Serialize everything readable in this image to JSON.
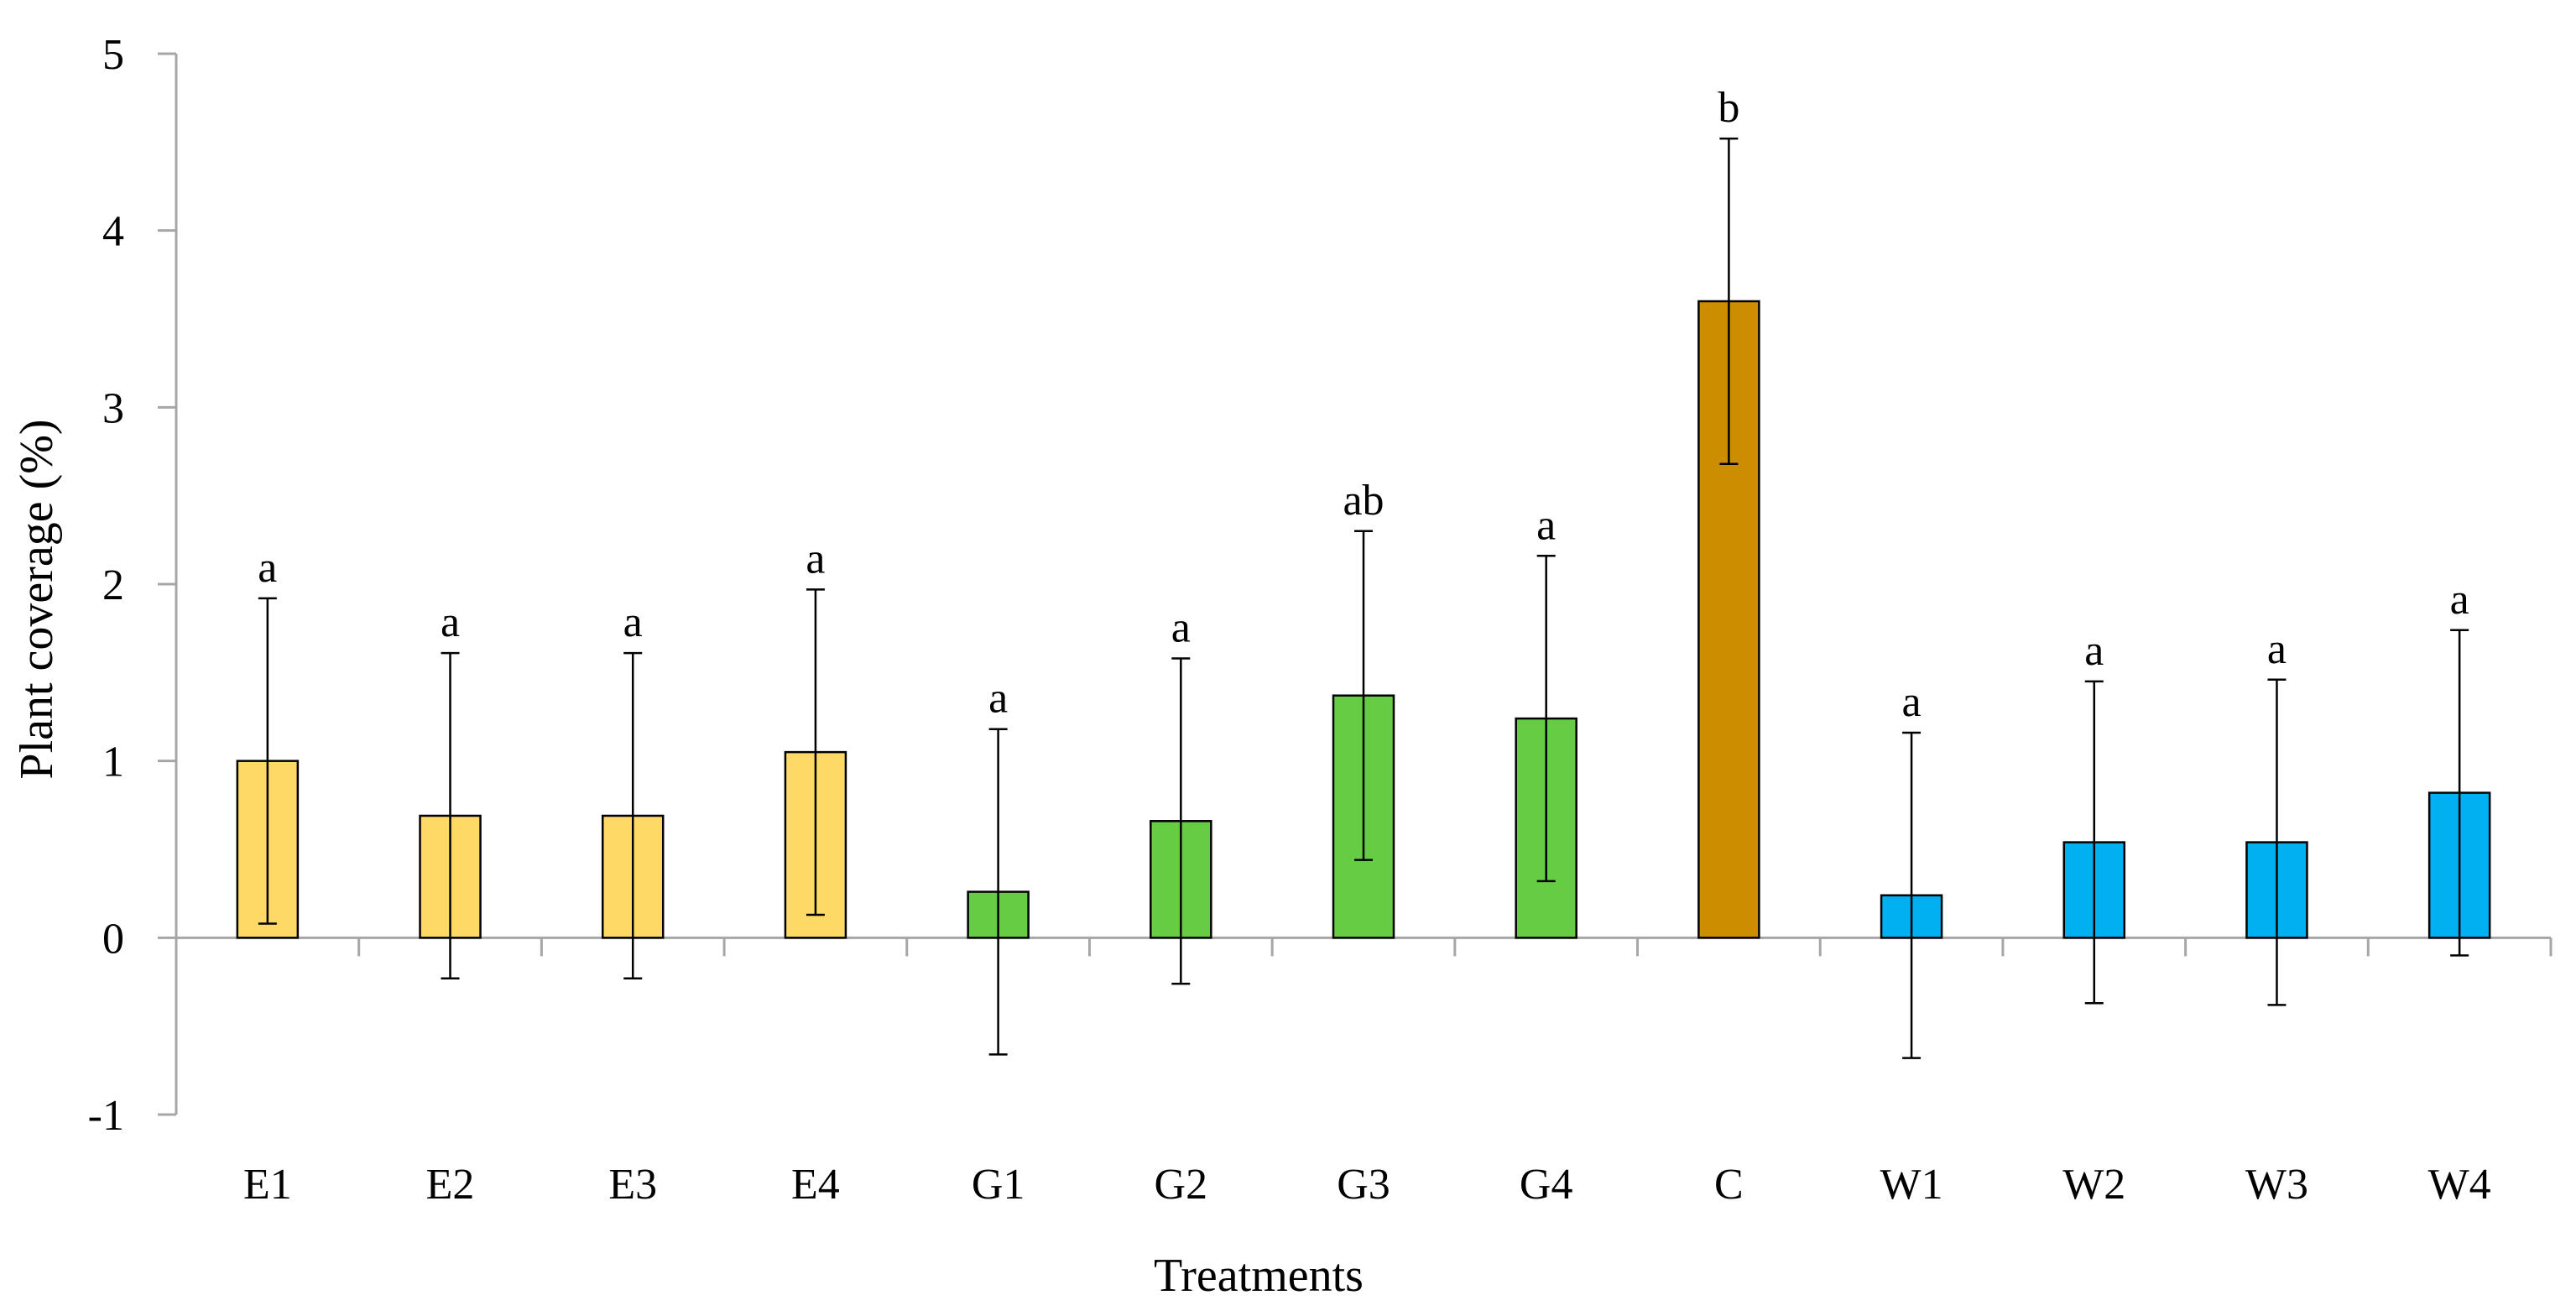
{
  "chart_data": {
    "type": "bar",
    "title": "",
    "xlabel": "Treatments",
    "ylabel": "Plant coverage (%)",
    "ylim": [
      -1,
      5
    ],
    "yticks": [
      -1,
      0,
      1,
      2,
      3,
      4,
      5
    ],
    "grid": false,
    "categories": [
      "E1",
      "E2",
      "E3",
      "E4",
      "G1",
      "G2",
      "G3",
      "G4",
      "C",
      "W1",
      "W2",
      "W3",
      "W4"
    ],
    "values": [
      1.0,
      0.69,
      0.69,
      1.05,
      0.26,
      0.66,
      1.37,
      1.24,
      3.6,
      0.24,
      0.54,
      0.54,
      0.82
    ],
    "errors": [
      0.92,
      0.92,
      0.92,
      0.92,
      0.92,
      0.92,
      0.93,
      0.92,
      0.92,
      0.92,
      0.91,
      0.92,
      0.92
    ],
    "significance": [
      "a",
      "a",
      "a",
      "a",
      "a",
      "a",
      "ab",
      "a",
      "b",
      "a",
      "a",
      "a",
      "a"
    ],
    "colors": [
      "#FFD966",
      "#FFD966",
      "#FFD966",
      "#FFD966",
      "#66CC44",
      "#66CC44",
      "#66CC44",
      "#66CC44",
      "#CC8E00",
      "#00B0F0",
      "#00B0F0",
      "#00B0F0",
      "#00B0F0"
    ]
  }
}
